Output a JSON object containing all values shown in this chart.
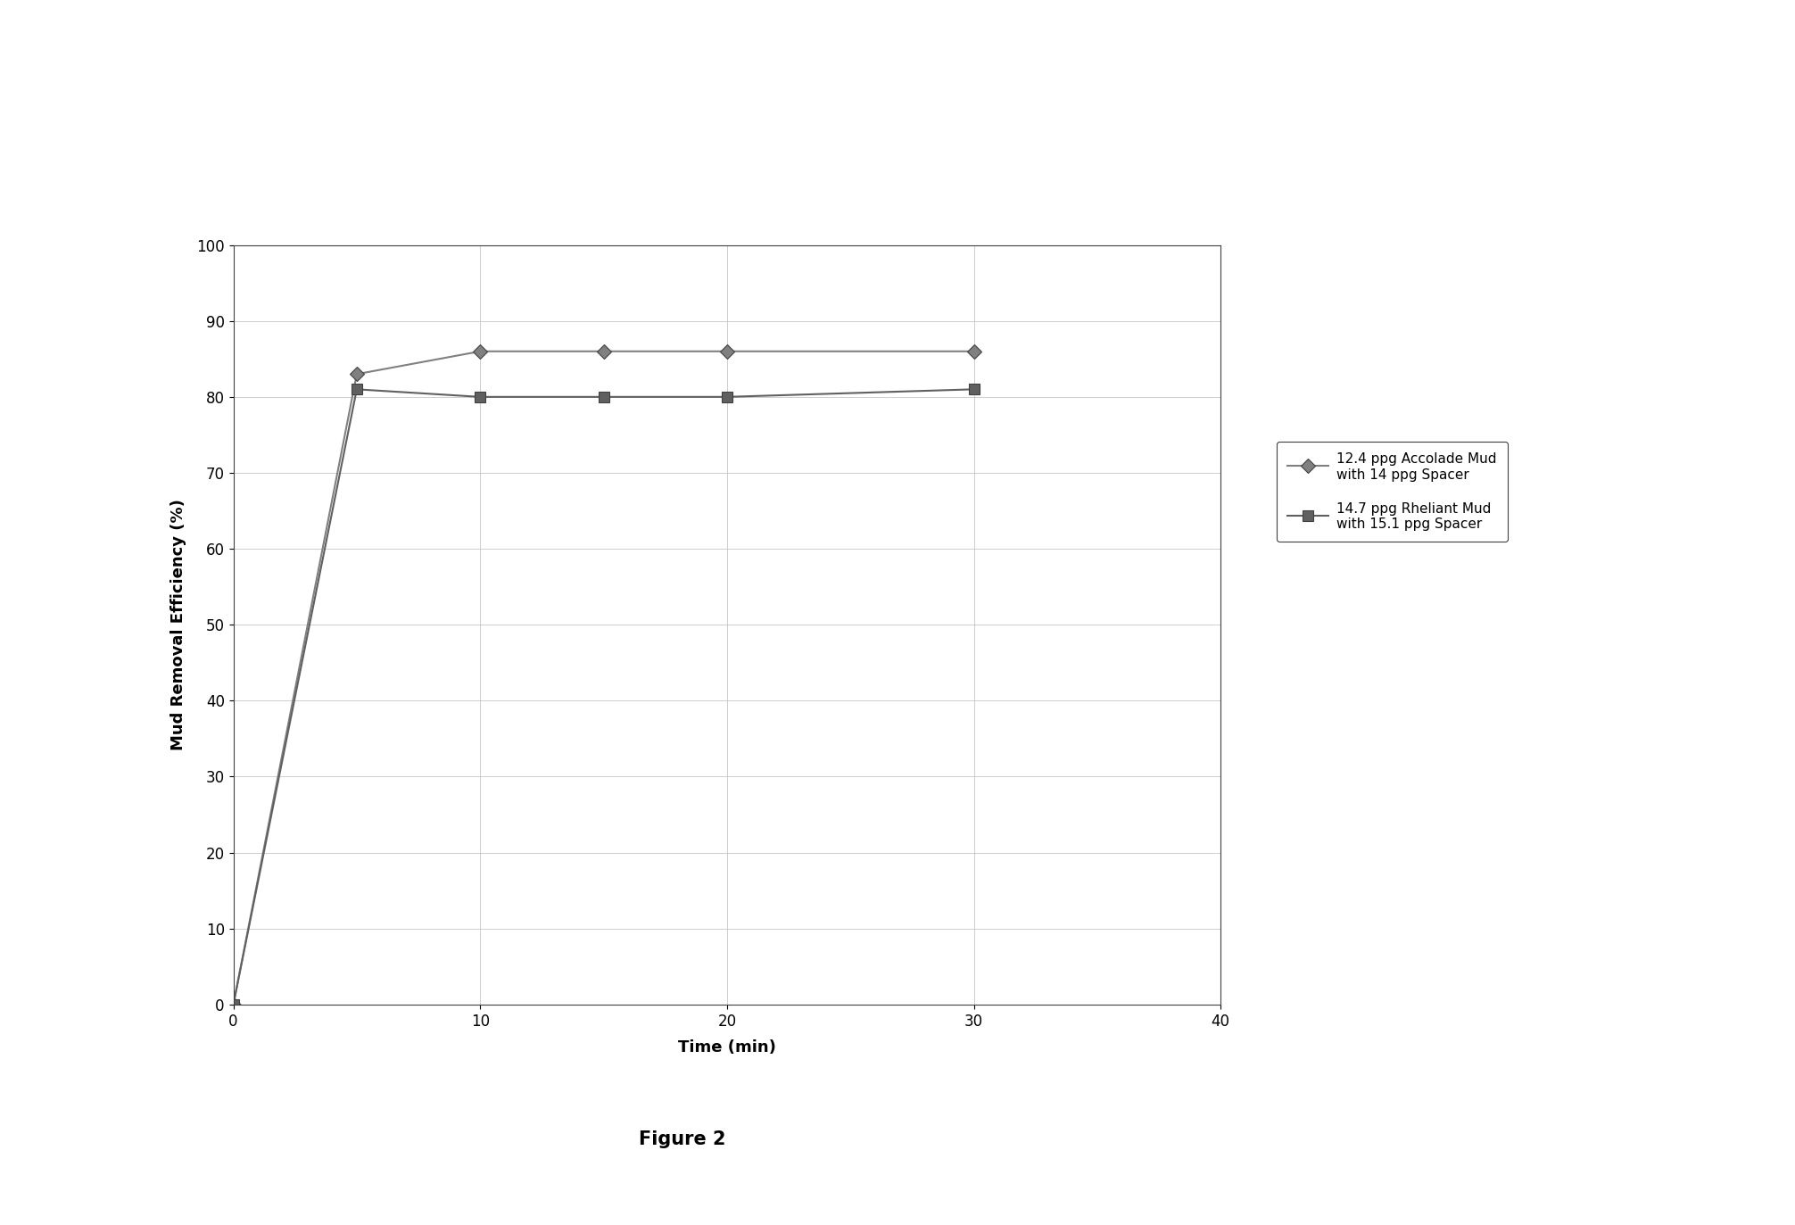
{
  "series1": {
    "x": [
      0,
      5,
      10,
      15,
      20,
      30
    ],
    "y": [
      0,
      83,
      86,
      86,
      86,
      86
    ],
    "label": "12.4 ppg Accolade Mud\nwith 14 ppg Spacer",
    "color": "#808080",
    "marker": "D",
    "markersize": 8,
    "linewidth": 1.5
  },
  "series2": {
    "x": [
      0,
      5,
      10,
      15,
      20,
      30
    ],
    "y": [
      0,
      81,
      80,
      80,
      80,
      81
    ],
    "label": "14.7 ppg Rheliant Mud\nwith 15.1 ppg Spacer",
    "color": "#606060",
    "marker": "s",
    "markersize": 8,
    "linewidth": 1.5
  },
  "xlabel": "Time (min)",
  "ylabel": "Mud Removal Efficiency (%)",
  "xlim": [
    0,
    40
  ],
  "ylim": [
    0,
    100
  ],
  "xticks": [
    0,
    10,
    20,
    30,
    40
  ],
  "yticks": [
    0,
    10,
    20,
    30,
    40,
    50,
    60,
    70,
    80,
    90,
    100
  ],
  "caption": "Figure 2",
  "background_color": "#ffffff",
  "grid_color": "#c0c0c0",
  "axis_label_fontsize": 13,
  "tick_fontsize": 12,
  "legend_fontsize": 11,
  "caption_fontsize": 15
}
